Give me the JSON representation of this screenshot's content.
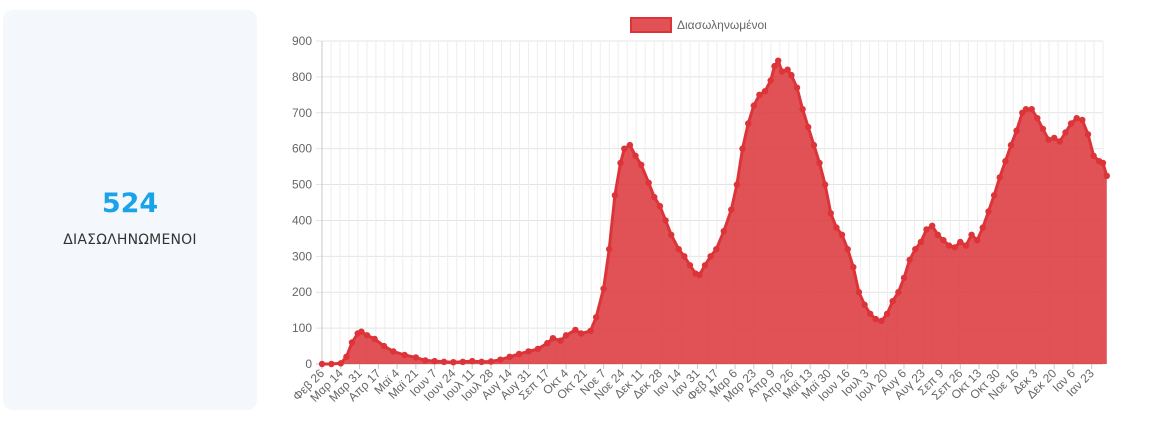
{
  "summary": {
    "value": "524",
    "label": "ΔΙΑΣΩΛΗΝΩΜΕΝΟΙ"
  },
  "chart_data": {
    "type": "area",
    "title": "",
    "xlabel": "",
    "ylabel": "",
    "ylim": [
      0,
      900
    ],
    "yticks": [
      0,
      100,
      200,
      300,
      400,
      500,
      600,
      700,
      800,
      900
    ],
    "grid": true,
    "legend": "top-center",
    "x_tick_labels": [
      "Φεβ 26",
      "Μαρ 14",
      "Μαρ 31",
      "Απρ 17",
      "Μαϊ 4",
      "Μαϊ 21",
      "Ιουν 7",
      "Ιουν 24",
      "Ιουλ 11",
      "Ιουλ 28",
      "Αυγ 14",
      "Αυγ 31",
      "Σεπ 17",
      "Οκτ 4",
      "Οκτ 21",
      "Νοε 7",
      "Νοε 24",
      "Δεκ 11",
      "Δεκ 28",
      "Ιαν 14",
      "Ιαν 31",
      "Φεβ 17",
      "Μαρ 6",
      "Μαρ 23",
      "Απρ 9",
      "Απρ 26",
      "Μαϊ 13",
      "Μαϊ 30",
      "Ιουν 16",
      "Ιουλ 3",
      "Ιουλ 20",
      "Αυγ 6",
      "Αυγ 23",
      "Σεπ 9",
      "Σεπ 26",
      "Οκτ 13",
      "Οκτ 30",
      "Νοε 16",
      "Δεκ 3",
      "Δεκ 20",
      "Ιαν 6",
      "Ιαν 23"
    ],
    "series": [
      {
        "name": "Διασωληνωμένοι",
        "color": "#dc3439",
        "fill": "rgba(220, 52, 57, 0.85)",
        "points": [
          [
            0,
            0
          ],
          [
            0.5,
            0
          ],
          [
            1,
            2
          ],
          [
            1.3,
            20
          ],
          [
            1.6,
            60
          ],
          [
            1.9,
            85
          ],
          [
            2.1,
            90
          ],
          [
            2.4,
            80
          ],
          [
            2.8,
            70
          ],
          [
            3.3,
            50
          ],
          [
            3.8,
            35
          ],
          [
            4.4,
            25
          ],
          [
            5,
            18
          ],
          [
            5.5,
            10
          ],
          [
            6,
            8
          ],
          [
            6.5,
            6
          ],
          [
            7,
            5
          ],
          [
            7.5,
            6
          ],
          [
            8,
            8
          ],
          [
            8.5,
            6
          ],
          [
            9,
            7
          ],
          [
            9.5,
            12
          ],
          [
            10,
            20
          ],
          [
            10.5,
            28
          ],
          [
            11,
            35
          ],
          [
            11.5,
            42
          ],
          [
            12,
            58
          ],
          [
            12.3,
            72
          ],
          [
            12.7,
            65
          ],
          [
            13,
            80
          ],
          [
            13.5,
            95
          ],
          [
            13.8,
            85
          ],
          [
            14.3,
            92
          ],
          [
            14.6,
            130
          ],
          [
            15,
            210
          ],
          [
            15.3,
            320
          ],
          [
            15.6,
            470
          ],
          [
            15.9,
            560
          ],
          [
            16.1,
            600
          ],
          [
            16.4,
            610
          ],
          [
            16.7,
            580
          ],
          [
            17,
            555
          ],
          [
            17.4,
            505
          ],
          [
            17.7,
            465
          ],
          [
            18,
            440
          ],
          [
            18.3,
            400
          ],
          [
            18.6,
            360
          ],
          [
            19,
            320
          ],
          [
            19.3,
            300
          ],
          [
            19.6,
            275
          ],
          [
            19.9,
            252
          ],
          [
            20.1,
            248
          ],
          [
            20.4,
            275
          ],
          [
            20.7,
            300
          ],
          [
            21,
            320
          ],
          [
            21.4,
            370
          ],
          [
            21.8,
            430
          ],
          [
            22.1,
            500
          ],
          [
            22.4,
            600
          ],
          [
            22.7,
            670
          ],
          [
            23,
            720
          ],
          [
            23.3,
            750
          ],
          [
            23.6,
            760
          ],
          [
            23.9,
            790
          ],
          [
            24.1,
            830
          ],
          [
            24.3,
            845
          ],
          [
            24.5,
            815
          ],
          [
            24.8,
            820
          ],
          [
            25,
            805
          ],
          [
            25.3,
            770
          ],
          [
            25.6,
            710
          ],
          [
            25.9,
            660
          ],
          [
            26.2,
            610
          ],
          [
            26.5,
            560
          ],
          [
            26.8,
            500
          ],
          [
            27.1,
            420
          ],
          [
            27.4,
            380
          ],
          [
            27.7,
            360
          ],
          [
            28,
            320
          ],
          [
            28.3,
            270
          ],
          [
            28.6,
            200
          ],
          [
            28.9,
            165
          ],
          [
            29.2,
            140
          ],
          [
            29.5,
            125
          ],
          [
            29.8,
            120
          ],
          [
            30.1,
            140
          ],
          [
            30.4,
            175
          ],
          [
            30.7,
            200
          ],
          [
            31,
            240
          ],
          [
            31.3,
            290
          ],
          [
            31.6,
            320
          ],
          [
            31.9,
            340
          ],
          [
            32.2,
            375
          ],
          [
            32.5,
            385
          ],
          [
            32.8,
            360
          ],
          [
            33.1,
            345
          ],
          [
            33.4,
            330
          ],
          [
            33.7,
            325
          ],
          [
            34,
            340
          ],
          [
            34.3,
            330
          ],
          [
            34.6,
            360
          ],
          [
            34.9,
            345
          ],
          [
            35.2,
            380
          ],
          [
            35.5,
            425
          ],
          [
            35.8,
            470
          ],
          [
            36.1,
            520
          ],
          [
            36.4,
            565
          ],
          [
            36.7,
            610
          ],
          [
            37,
            650
          ],
          [
            37.3,
            700
          ],
          [
            37.5,
            710
          ],
          [
            37.8,
            710
          ],
          [
            38.1,
            685
          ],
          [
            38.4,
            655
          ],
          [
            38.7,
            625
          ],
          [
            39,
            630
          ],
          [
            39.3,
            620
          ],
          [
            39.6,
            645
          ],
          [
            39.9,
            670
          ],
          [
            40.2,
            685
          ],
          [
            40.5,
            680
          ],
          [
            40.8,
            640
          ],
          [
            41.1,
            580
          ],
          [
            41.4,
            565
          ],
          [
            41.6,
            560
          ],
          [
            41.8,
            524
          ]
        ]
      }
    ]
  }
}
